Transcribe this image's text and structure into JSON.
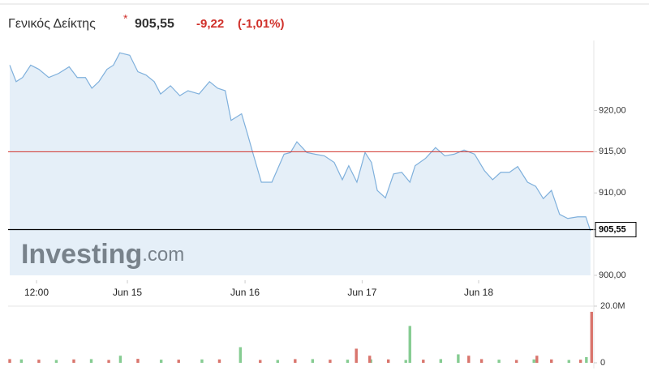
{
  "header": {
    "title": "Γενικός Δείκτης",
    "change": "-9,22",
    "change_pct": "(-1,01%)"
  },
  "chart_data": [
    {
      "type": "line",
      "watermark": [
        "Investing",
        ".com"
      ],
      "x": [
        0,
        1.1,
        2.2,
        3.6,
        5,
        6.7,
        8.4,
        10.2,
        11.6,
        13,
        14.1,
        15.3,
        16.7,
        17.8,
        18.9,
        20.6,
        22,
        23.4,
        24.8,
        25.9,
        27.6,
        29.2,
        30.6,
        32.5,
        34.3,
        35.7,
        37,
        38,
        39.8,
        40.8,
        41.8,
        43.2,
        45,
        47.1,
        48.2,
        49.3,
        51,
        52.4,
        54,
        55.7,
        57.1,
        58.2,
        59.6,
        61,
        62.1,
        63.1,
        64.5,
        65.9,
        67.3,
        68.7,
        69.6,
        71.4,
        73.1,
        74.7,
        76.3,
        78,
        79.8,
        81.5,
        82.9,
        84.3,
        85.8,
        87.2,
        88.9,
        90.3,
        91.6,
        93,
        94.4,
        95.8,
        97.5,
        98.9,
        99.7
      ],
      "series": [
        {
          "color": "#7fb0dc",
          "values": [
            925.5,
            923.5,
            924,
            925.5,
            925,
            924,
            924.5,
            925.3,
            924,
            924,
            922.7,
            923.5,
            925,
            925.5,
            927,
            926.7,
            924.7,
            924.3,
            923.5,
            922,
            923,
            921.8,
            922.4,
            922,
            923.5,
            922.7,
            922.4,
            918.8,
            919.6,
            917.2,
            914.7,
            911.3,
            911.3,
            914.7,
            914.9,
            916.2,
            914.9,
            914.7,
            914.5,
            913.7,
            911.6,
            913.3,
            911.3,
            914.9,
            913.7,
            910.3,
            909.4,
            912.3,
            912.5,
            911.3,
            913.3,
            914.2,
            915.5,
            914.5,
            914.7,
            915.2,
            914.7,
            912.7,
            911.6,
            912.5,
            912.5,
            913.2,
            911.3,
            910.8,
            909.3,
            910.3,
            907.4,
            906.9,
            907.1,
            907.1,
            905.4
          ]
        }
      ],
      "xlim": [
        0,
        100
      ],
      "xticks": [
        {
          "value": 4.6,
          "label": "12:00"
        },
        {
          "value": 20.2,
          "label": "Jun 15"
        },
        {
          "value": 40.4,
          "label": "Jun 16"
        },
        {
          "value": 60.5,
          "label": "Jun 17"
        },
        {
          "value": 80.5,
          "label": "Jun 18"
        }
      ],
      "ylim": [
        900,
        928
      ],
      "yticks": [
        {
          "value": 900,
          "label": "900,00"
        },
        {
          "value": 910,
          "label": "910,00"
        },
        {
          "value": 915,
          "label": "915,00"
        },
        {
          "value": 920,
          "label": "920,00"
        }
      ],
      "reference_line": {
        "value": 915,
        "color": "#d0302a"
      },
      "last_value": {
        "value": 905.55,
        "label": "905,55"
      }
    },
    {
      "type": "bar",
      "series": [
        {
          "color": "#86cc92",
          "x": [
            2,
            8,
            14,
            19,
            26,
            33,
            39.6,
            46,
            52,
            58,
            62,
            68,
            68.7,
            74,
            77,
            84,
            90,
            96,
            99
          ],
          "values": [
            1200000,
            1000000,
            1300000,
            2500000,
            1100000,
            1200000,
            5500000,
            1000000,
            1300000,
            1100000,
            1200000,
            1000000,
            13000000,
            1300000,
            3000000,
            1100000,
            1200000,
            1000000,
            2000000
          ]
        },
        {
          "color": "#d9756d",
          "x": [
            0,
            5,
            11,
            17,
            22,
            29,
            36,
            43,
            49,
            55,
            59.5,
            61.8,
            65,
            71,
            78.8,
            81,
            87,
            90.5,
            93,
            98,
            99.9
          ],
          "values": [
            1300000,
            1100000,
            1200000,
            1000000,
            1400000,
            1100000,
            1200000,
            1000000,
            1300000,
            1100000,
            5000000,
            2500000,
            1200000,
            1100000,
            2500000,
            1300000,
            1000000,
            2500000,
            1200000,
            1100000,
            18000000
          ]
        }
      ],
      "xlim": [
        0,
        100
      ],
      "ylim": [
        0,
        20000000
      ],
      "yticks": [
        0,
        {
          "value": 20000000,
          "label": "20.0M"
        }
      ]
    }
  ]
}
